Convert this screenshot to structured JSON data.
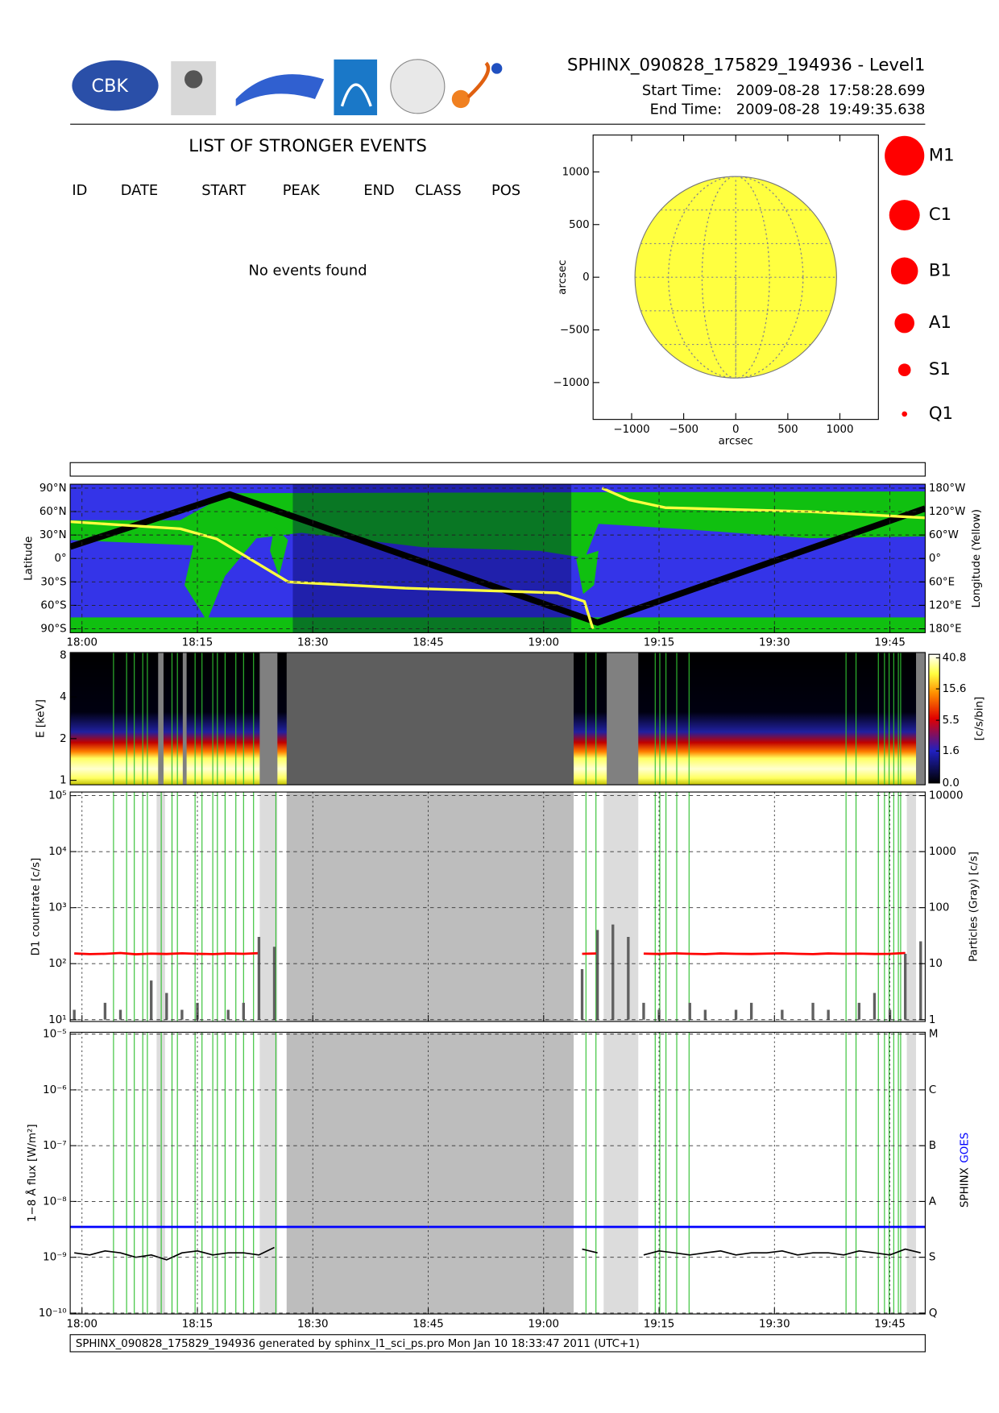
{
  "header": {
    "logo_text": "CBK",
    "title": "SPHINX_090828_175829_194936 - Level1",
    "start_label": "Start Time:",
    "start_date": "2009-08-28",
    "start_time": "17:58:28.699",
    "end_label": "End Time:",
    "end_date": "2009-08-28",
    "end_time": "19:49:35.638"
  },
  "events": {
    "title": "LIST OF STRONGER EVENTS",
    "columns": [
      "ID",
      "DATE",
      "START",
      "PEAK",
      "END",
      "CLASS",
      "POS"
    ],
    "empty_message": "No events found"
  },
  "footer": "SPHINX_090828_175829_194936 generated by sphinx_l1_sci_ps.pro Mon Jan 10 18:33:47 2011 (UTC+1)",
  "chart_data": [
    {
      "type": "disk",
      "xlabel": "arcsec",
      "ylabel": "arcsec",
      "xlim": [
        -1370,
        1370
      ],
      "ylim": [
        -1350,
        1350
      ],
      "xticks": [
        {
          "value": -1000,
          "label": "−1000"
        },
        {
          "value": -500,
          "label": "−500"
        },
        0,
        500,
        1000
      ],
      "yticks": [
        {
          "value": -1000,
          "label": "−1000"
        },
        {
          "value": -500,
          "label": "−500"
        },
        0,
        500,
        1000
      ],
      "color": "#ffff40",
      "legend": {
        "labels": [
          "M1",
          "C1",
          "B1",
          "A1",
          "S1",
          "Q1"
        ],
        "color": "#ff0000"
      }
    },
    {
      "type": "map",
      "ylabel": "Latitude",
      "y2label": "Longitude (Yellow)",
      "xlim": [
        1078.47,
        1189.59
      ],
      "ylim": [
        -95,
        95
      ],
      "y2lim": [
        190,
        -190
      ],
      "xticks": [
        {
          "value": 1080,
          "label": "18:00"
        },
        {
          "value": 1095,
          "label": "18:15"
        },
        {
          "value": 1110,
          "label": "18:30"
        },
        {
          "value": 1125,
          "label": "18:45"
        },
        {
          "value": 1140,
          "label": "19:00"
        },
        {
          "value": 1155,
          "label": "19:15"
        },
        {
          "value": 1170,
          "label": "19:30"
        },
        {
          "value": 1185,
          "label": "19:45"
        }
      ],
      "yticks": [
        {
          "value": 90,
          "label": "90°N"
        },
        {
          "value": 60,
          "label": "60°N"
        },
        {
          "value": 30,
          "label": "30°N"
        },
        {
          "value": 0,
          "label": "0°"
        },
        {
          "value": -30,
          "label": "30°S"
        },
        {
          "value": -60,
          "label": "60°S"
        },
        {
          "value": -90,
          "label": "90°S"
        }
      ],
      "y2ticks": [
        {
          "value": -180,
          "label": "180°W"
        },
        {
          "value": -120,
          "label": "120°W"
        },
        {
          "value": -60,
          "label": "60°W"
        },
        {
          "value": 0,
          "label": "0°"
        },
        {
          "value": 60,
          "label": "60°E"
        },
        {
          "value": 120,
          "label": "120°E"
        },
        {
          "value": 180,
          "label": "180°E"
        }
      ],
      "grid": true,
      "night": [
        [
          1107.4,
          1143.6
        ]
      ],
      "series": [
        {
          "color": "#000000",
          "x": [
            1078.47,
            1099.2,
            1147.0,
            1189.59
          ],
          "values": [
            15,
            82,
            -82,
            64
          ]
        },
        {
          "color": "#ffff40",
          "axis": "y2",
          "x": [
            1078.47,
            1092.8,
            1097.5,
            1106.8,
            1122.0,
            1141.8,
            1145.3,
            1146.4,
            1147.0,
            1147.6,
            1151.1,
            1155.8,
            1174.4,
            1189.59
          ],
          "values": [
            -94,
            -76,
            -50,
            60,
            76,
            88,
            110,
            180,
            null,
            -180,
            -150,
            -130,
            -120,
            -104
          ]
        }
      ]
    },
    {
      "type": "spectrogram",
      "ylabel": "E [keV]",
      "log_y": true,
      "ylim": [
        1,
        8
      ],
      "yticks": [
        1,
        2,
        4,
        8
      ],
      "xlim": [
        1078.47,
        1189.59
      ],
      "clim": [
        0,
        40.8
      ],
      "cticks": [
        {
          "value": 0,
          "label": "0.0"
        },
        1.6,
        5.5,
        15.6,
        40.8
      ],
      "clabel": "[c/s/bin]",
      "gaps": [
        [
          1089.9,
          1090.6
        ],
        [
          1093.1,
          1093.6
        ],
        [
          1103.1,
          1105.4
        ],
        [
          1148.2,
          1152.3
        ],
        [
          1188.4,
          1189.59
        ]
      ],
      "night": [
        [
          1106.6,
          1143.9
        ]
      ],
      "marker_color": "#30c030",
      "markers": [
        1084.1,
        1085.8,
        1086.8,
        1087.9,
        1088.5,
        1090.3,
        1091.7,
        1092.4,
        1094.7,
        1095.6,
        1097.0,
        1097.6,
        1098.6,
        1100.0,
        1101.0,
        1102.3,
        1105.2,
        1145.5,
        1146.8,
        1154.5,
        1155.1,
        1155.9,
        1157.3,
        1158.9,
        1179.3,
        1180.6,
        1183.5,
        1184.3,
        1184.9,
        1185.5,
        1186.1,
        1186.4
      ]
    },
    {
      "type": "countrate",
      "ylabel": "D1 countrate [c/s]",
      "y2label": "Particles (Gray) [c/s]",
      "log_y": true,
      "xlim": [
        1078.47,
        1189.59
      ],
      "xticks": [
        1080,
        1095,
        1110,
        1125,
        1140,
        1155,
        1170,
        1185
      ],
      "ylim": [
        10,
        100000
      ],
      "yticks": [
        {
          "value": 10,
          "label": "10¹"
        },
        {
          "value": 100,
          "label": "10²"
        },
        {
          "value": 1000,
          "label": "10³"
        },
        {
          "value": 10000,
          "label": "10⁴"
        },
        {
          "value": 100000,
          "label": "10⁵"
        }
      ],
      "y2lim": [
        1,
        10000
      ],
      "y2ticks": [
        1,
        10,
        100,
        1000,
        10000
      ],
      "grid": true,
      "gaps": [
        [
          1089.7,
          1090.8
        ],
        [
          1103.1,
          1105.4
        ],
        [
          1147.8,
          1152.3
        ],
        [
          1187.2,
          1188.4
        ]
      ],
      "night": [
        [
          1106.6,
          1143.9
        ]
      ],
      "marker_color": "#30c030",
      "markers": [
        1084.1,
        1085.8,
        1086.8,
        1087.9,
        1088.5,
        1090.3,
        1091.7,
        1092.4,
        1094.7,
        1095.6,
        1097.0,
        1097.6,
        1098.6,
        1100.0,
        1101.0,
        1102.3,
        1105.2,
        1145.5,
        1146.8,
        1154.5,
        1155.1,
        1155.9,
        1157.3,
        1158.9,
        1179.3,
        1180.6,
        1183.5,
        1184.3,
        1184.9,
        1185.5,
        1186.1,
        1186.4
      ],
      "series": [
        {
          "color": "#ff0000",
          "x": [
            1079,
            1081,
            1083,
            1085,
            1087,
            1089,
            1091,
            1093,
            1095,
            1097,
            1099,
            1101,
            1103,
            1105,
            1107,
            1109,
            1111,
            1113,
            1115,
            1117,
            1119,
            1121,
            1123,
            1125,
            1127,
            1129,
            1131,
            1133,
            1135,
            1137,
            1139,
            1141,
            1143,
            1145,
            1147,
            1149,
            1151,
            1153,
            1155,
            1157,
            1159,
            1161,
            1163,
            1165,
            1167,
            1169,
            1171,
            1173,
            1175,
            1177,
            1179,
            1181,
            1183,
            1185,
            1187,
            1189
          ],
          "values": [
            152,
            148,
            150,
            155,
            147,
            151,
            149,
            153,
            150,
            148,
            152,
            150,
            154,
            null,
            null,
            null,
            null,
            null,
            null,
            null,
            null,
            null,
            null,
            null,
            null,
            null,
            null,
            null,
            null,
            null,
            null,
            null,
            null,
            150,
            152,
            null,
            null,
            151,
            149,
            153,
            150,
            148,
            152,
            150,
            149,
            151,
            153,
            150,
            148,
            152,
            150,
            151,
            149,
            150,
            155,
            null
          ]
        },
        {
          "color": "#606060",
          "axis": "y2",
          "x": [
            1079,
            1081,
            1083,
            1085,
            1087,
            1089,
            1091,
            1093,
            1095,
            1097,
            1099,
            1101,
            1103,
            1105,
            1107,
            1109,
            1111,
            1113,
            1115,
            1117,
            1119,
            1121,
            1123,
            1125,
            1127,
            1129,
            1131,
            1133,
            1135,
            1137,
            1139,
            1141,
            1143,
            1145,
            1147,
            1149,
            1151,
            1153,
            1155,
            1157,
            1159,
            1161,
            1163,
            1165,
            1167,
            1169,
            1171,
            1173,
            1175,
            1177,
            1179,
            1181,
            1183,
            1185,
            1187,
            1189
          ],
          "values": [
            1.5,
            1,
            2,
            1.5,
            1,
            5,
            3,
            1.5,
            2,
            1,
            1.5,
            2,
            30,
            20,
            null,
            null,
            null,
            null,
            null,
            null,
            null,
            null,
            null,
            null,
            null,
            null,
            null,
            null,
            null,
            null,
            null,
            null,
            null,
            8,
            40,
            50,
            30,
            2,
            1.5,
            1,
            2,
            1.5,
            1,
            1.5,
            2,
            1,
            1.5,
            1,
            2,
            1.5,
            1,
            2,
            3,
            1.5,
            15,
            25
          ]
        }
      ]
    },
    {
      "type": "flux",
      "ylabel": "1−8 Å flux [W/m²]",
      "log_y": true,
      "xlim": [
        1078.47,
        1189.59
      ],
      "xticks": [
        {
          "value": 1080,
          "label": "18:00"
        },
        {
          "value": 1095,
          "label": "18:15"
        },
        {
          "value": 1110,
          "label": "18:30"
        },
        {
          "value": 1125,
          "label": "18:45"
        },
        {
          "value": 1140,
          "label": "19:00"
        },
        {
          "value": 1155,
          "label": "19:15"
        },
        {
          "value": 1170,
          "label": "19:30"
        },
        {
          "value": 1185,
          "label": "19:45"
        }
      ],
      "ylim": [
        1e-10,
        1e-05
      ],
      "yticks": [
        {
          "value": 1e-10,
          "label": "10⁻¹⁰"
        },
        {
          "value": 1e-09,
          "label": "10⁻⁹"
        },
        {
          "value": 1e-08,
          "label": "10⁻⁸"
        },
        {
          "value": 1e-07,
          "label": "10⁻⁷"
        },
        {
          "value": 1e-06,
          "label": "10⁻⁶"
        },
        {
          "value": 1e-05,
          "label": "10⁻⁵"
        }
      ],
      "y2lim": [
        1e-10,
        1e-05
      ],
      "y2ticks": [
        {
          "value": 1e-10,
          "label": "Q"
        },
        {
          "value": 1e-09,
          "label": "S"
        },
        {
          "value": 1e-08,
          "label": "A"
        },
        {
          "value": 1e-07,
          "label": "B"
        },
        {
          "value": 1e-06,
          "label": "C"
        },
        {
          "value": 1e-05,
          "label": "M"
        }
      ],
      "grid": true,
      "gaps": [
        [
          1089.7,
          1090.8
        ],
        [
          1103.1,
          1105.4
        ],
        [
          1147.8,
          1152.3
        ],
        [
          1187.2,
          1188.4
        ]
      ],
      "night": [
        [
          1106.6,
          1143.9
        ]
      ],
      "marker_color": "#30c030",
      "markers": [
        1084.1,
        1085.8,
        1086.8,
        1087.9,
        1088.5,
        1090.3,
        1091.7,
        1092.4,
        1094.7,
        1095.6,
        1097.0,
        1097.6,
        1098.6,
        1100.0,
        1101.0,
        1102.3,
        1105.2,
        1145.5,
        1146.8,
        1154.5,
        1155.1,
        1155.9,
        1157.3,
        1158.9,
        1179.3,
        1180.6,
        1183.5,
        1184.3,
        1184.9,
        1185.5,
        1186.1,
        1186.4
      ],
      "series": [
        {
          "name": "SPHINX",
          "color": "#000000",
          "x": [
            1079,
            1081,
            1083,
            1085,
            1087,
            1089,
            1091,
            1093,
            1095,
            1097,
            1099,
            1101,
            1103,
            1105,
            1107,
            1109,
            1111,
            1113,
            1115,
            1117,
            1119,
            1121,
            1123,
            1125,
            1127,
            1129,
            1131,
            1133,
            1135,
            1137,
            1139,
            1141,
            1143,
            1145,
            1147,
            1149,
            1151,
            1153,
            1155,
            1157,
            1159,
            1161,
            1163,
            1165,
            1167,
            1169,
            1171,
            1173,
            1175,
            1177,
            1179,
            1181,
            1183,
            1185,
            1187,
            1189
          ],
          "values": [
            1.2e-09,
            1.1e-09,
            1.3e-09,
            1.2e-09,
            1e-09,
            1.1e-09,
            9e-10,
            1.2e-09,
            1.3e-09,
            1.1e-09,
            1.2e-09,
            1.2e-09,
            1.1e-09,
            1.5e-09,
            null,
            null,
            null,
            null,
            null,
            null,
            null,
            null,
            null,
            null,
            null,
            null,
            null,
            null,
            null,
            null,
            null,
            null,
            null,
            1.4e-09,
            1.2e-09,
            null,
            null,
            1.1e-09,
            1.3e-09,
            1.2e-09,
            1.1e-09,
            1.2e-09,
            1.3e-09,
            1.1e-09,
            1.2e-09,
            1.2e-09,
            1.3e-09,
            1.1e-09,
            1.2e-09,
            1.2e-09,
            1.1e-09,
            1.3e-09,
            1.2e-09,
            1.1e-09,
            1.4e-09,
            1.2e-09
          ]
        },
        {
          "name": "GOES",
          "color": "#0000ff",
          "x": [
            1078.47,
            1189.59
          ],
          "values": [
            3.5e-09,
            3.5e-09
          ]
        }
      ]
    }
  ]
}
